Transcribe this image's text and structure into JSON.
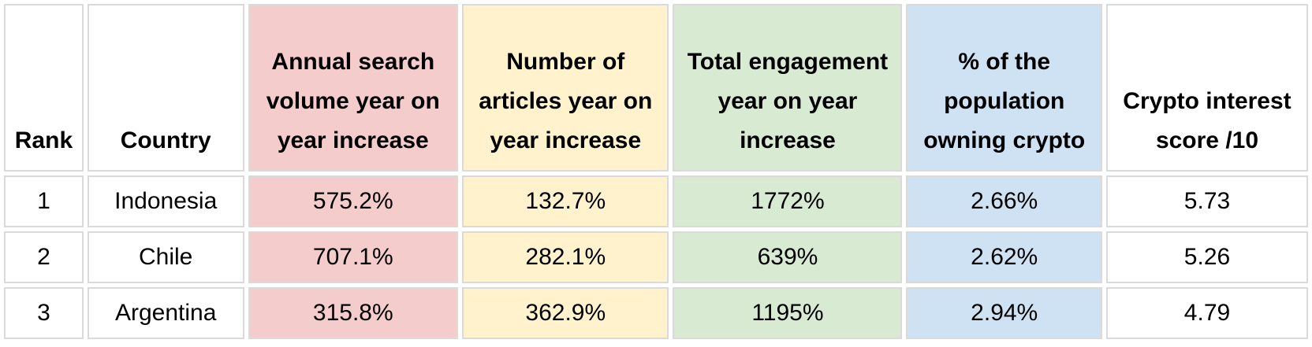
{
  "table": {
    "headers": [
      "Rank",
      "Country",
      "Annual search volume year on year increase",
      "Number of articles year on year increase",
      "Total engagement year on year increase",
      "% of the population owning crypto",
      "Crypto interest score /10"
    ],
    "rows": [
      [
        "1",
        "Indonesia",
        "575.2%",
        "132.7%",
        "1772%",
        "2.66%",
        "5.73"
      ],
      [
        "2",
        "Chile",
        "707.1%",
        "282.1%",
        "639%",
        "2.62%",
        "5.26"
      ],
      [
        "3",
        "Argentina",
        "315.8%",
        "362.9%",
        "1195%",
        "2.94%",
        "4.79"
      ]
    ]
  },
  "colors": {
    "search_column": "#f4cccc",
    "articles_column": "#fff2cc",
    "engagement_column": "#d9ead3",
    "ownership_column": "#cfe2f3",
    "border": "#dadada"
  }
}
